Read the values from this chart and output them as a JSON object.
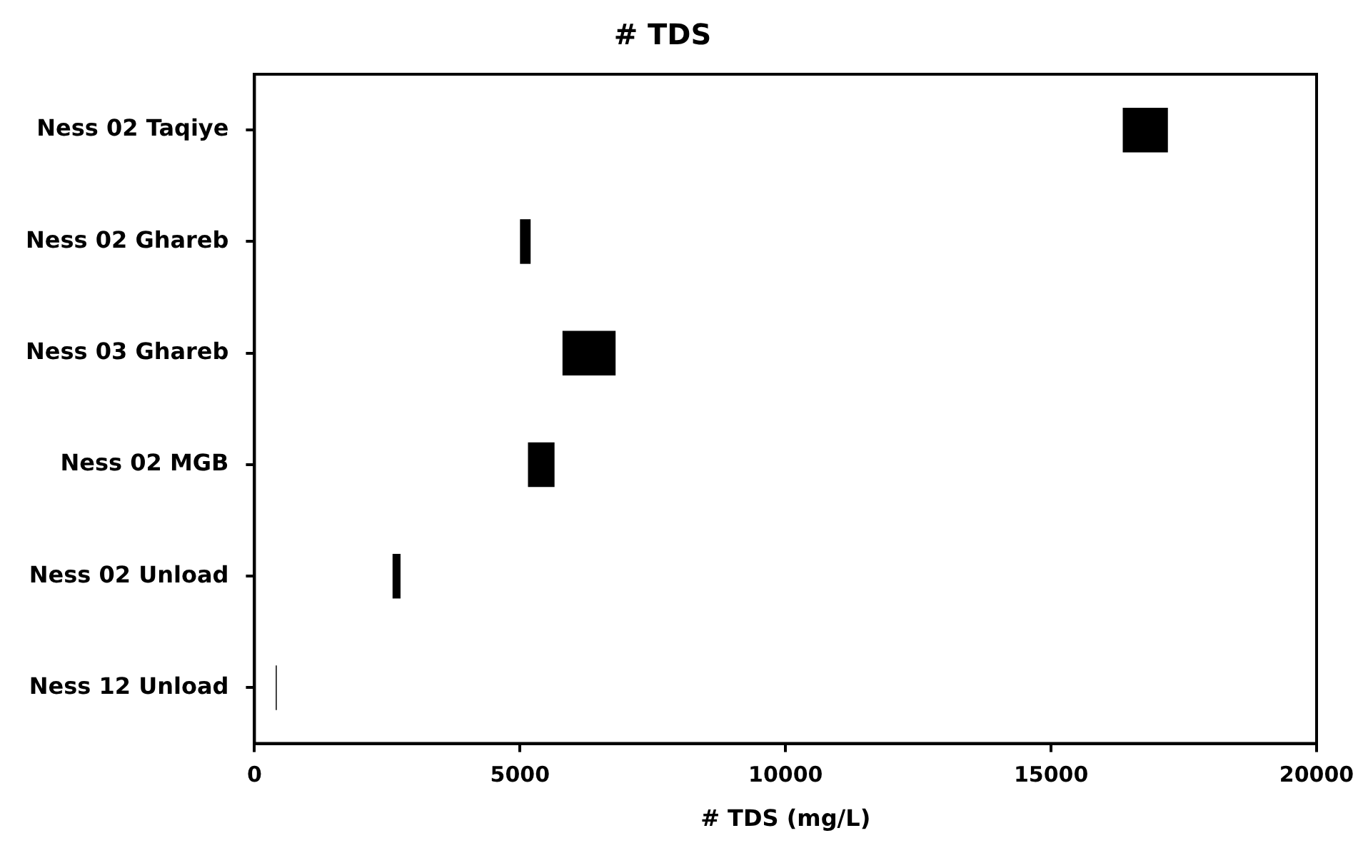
{
  "chart_data": {
    "type": "bar",
    "orientation": "horizontal",
    "title": "# TDS",
    "xlabel": "# TDS (mg/L)",
    "categories": [
      "Ness 02 Taqiye",
      "Ness 02 Ghareb",
      "Ness 03 Ghareb",
      "Ness 02 MGB",
      "Ness 02 Unload",
      "Ness 12 Unload"
    ],
    "base": [
      16350,
      5000,
      5800,
      5150,
      2600,
      400
    ],
    "values": [
      850,
      200,
      1000,
      500,
      150,
      20
    ],
    "color": "#000000",
    "xlim": [
      0,
      20000
    ],
    "xticks": [
      0,
      5000,
      10000,
      15000,
      20000
    ],
    "grid": false,
    "legend": false
  }
}
